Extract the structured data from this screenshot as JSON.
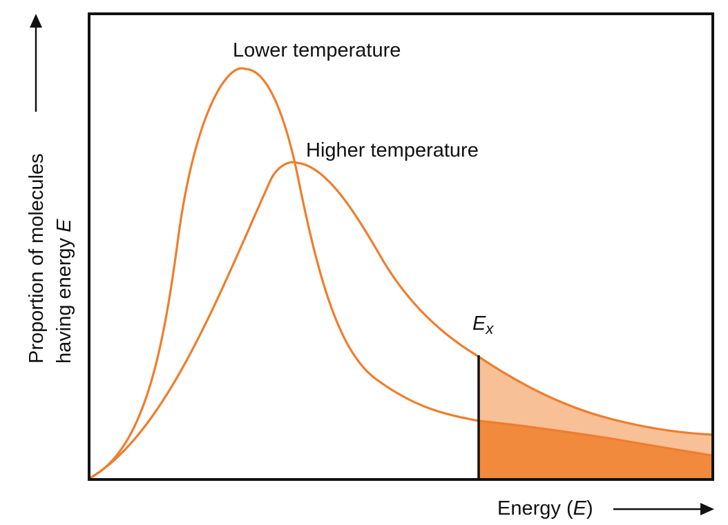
{
  "labels": {
    "lower_temperature": "Lower temperature",
    "higher_temperature": "Higher temperature",
    "threshold_symbol": "E",
    "threshold_subscript": "x",
    "y_axis_line1": "Proportion of molecules",
    "y_axis_line2_prefix": "having energy ",
    "y_axis_line2_symbol": "E",
    "x_axis_prefix": "Energy (",
    "x_axis_symbol": "E",
    "x_axis_suffix": ")"
  },
  "colors": {
    "curve": "#ef7d2d",
    "shade_light": "#f8c097",
    "shade_dark": "#f28a3d",
    "frame": "#111111"
  }
}
